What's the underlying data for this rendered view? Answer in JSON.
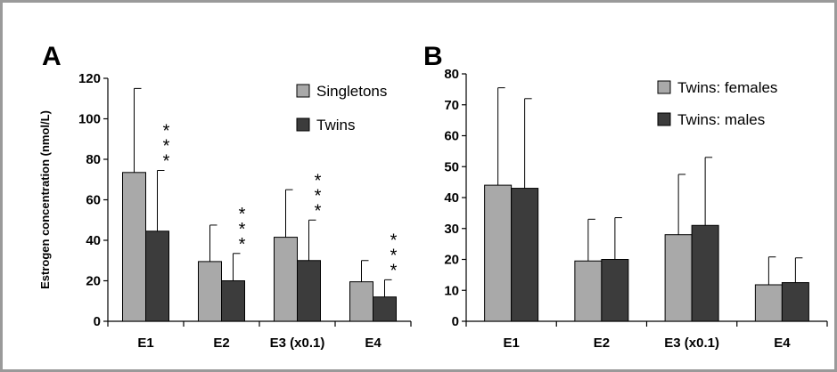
{
  "colors": {
    "singletons": "#a9a9a9",
    "twins": "#3c3c3c",
    "females": "#a9a9a9",
    "males": "#3c3c3c"
  },
  "chart_data": [
    {
      "panel": "A",
      "type": "bar",
      "ylabel": "Estrogen concentration (nmol/L)",
      "ylim": [
        0,
        120
      ],
      "yticks": [
        0,
        20,
        40,
        60,
        80,
        100,
        120
      ],
      "categories": [
        "E1",
        "E2",
        "E3 (x0.1)",
        "E4"
      ],
      "legend_position": "top-right",
      "series": [
        {
          "name": "Singletons",
          "values": [
            73.5,
            29.5,
            41.5,
            19.5
          ],
          "error": [
            41.5,
            18,
            23.5,
            10.5
          ]
        },
        {
          "name": "Twins",
          "values": [
            44.5,
            20,
            30,
            12
          ],
          "error": [
            30,
            13.5,
            20,
            8.5
          ]
        }
      ],
      "annotations": [
        {
          "category": "E1",
          "text": "* * *"
        },
        {
          "category": "E2",
          "text": "* * *"
        },
        {
          "category": "E3 (x0.1)",
          "text": "* * *"
        },
        {
          "category": "E4",
          "text": "* * *"
        }
      ]
    },
    {
      "panel": "B",
      "type": "bar",
      "ylabel": "",
      "ylim": [
        0,
        80
      ],
      "yticks": [
        0,
        10,
        20,
        30,
        40,
        50,
        60,
        70,
        80
      ],
      "categories": [
        "E1",
        "E2",
        "E3 (x0.1)",
        "E4"
      ],
      "legend_position": "top-right",
      "series": [
        {
          "name": "Twins: females",
          "values": [
            44,
            19.5,
            28,
            11.8
          ],
          "error": [
            31.5,
            13.5,
            19.5,
            9
          ]
        },
        {
          "name": "Twins: males",
          "values": [
            43,
            20,
            31,
            12.5
          ],
          "error": [
            29,
            13.5,
            22,
            8
          ]
        }
      ]
    }
  ]
}
